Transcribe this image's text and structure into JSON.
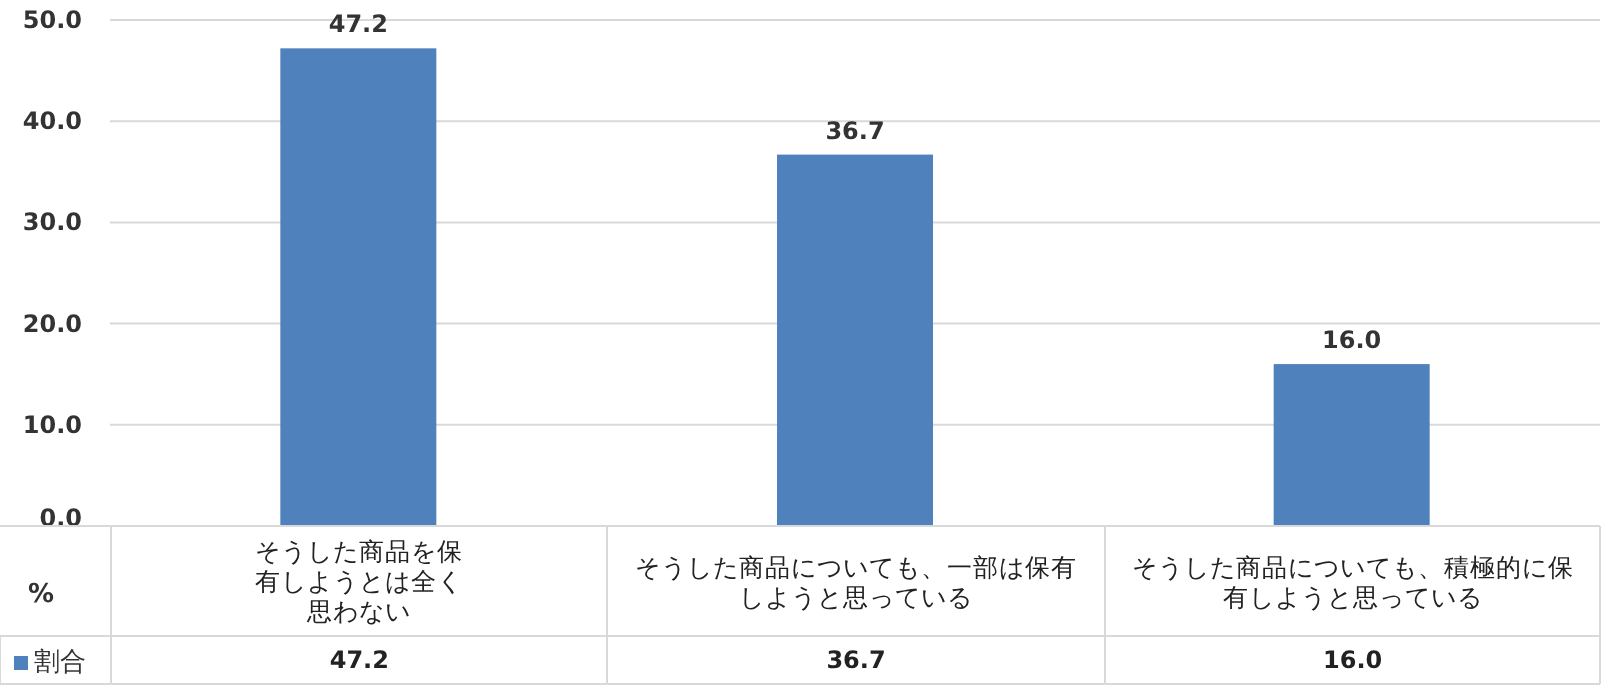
{
  "chart_data": {
    "type": "bar",
    "ylabel": "%",
    "categories": [
      "そうした商品を保有しようとは全く思わない",
      "そうした商品についても、一部は保有しようと思っている",
      "そうした商品についても、積極的に保有しようと思っている"
    ],
    "series": [
      {
        "name": "割合",
        "color": "#4f81bd",
        "values": [
          47.2,
          36.7,
          16.0
        ],
        "value_labels": [
          "47.2",
          "36.7",
          "16.0"
        ]
      }
    ],
    "ylim": [
      0,
      50
    ],
    "yticks": [
      {
        "value": 0,
        "label": "0.0"
      },
      {
        "value": 10,
        "label": "10.0"
      },
      {
        "value": 20,
        "label": "20.0"
      },
      {
        "value": 30,
        "label": "30.0"
      },
      {
        "value": 40,
        "label": "40.0"
      },
      {
        "value": 50,
        "label": "50.0"
      }
    ],
    "grid": "y"
  }
}
